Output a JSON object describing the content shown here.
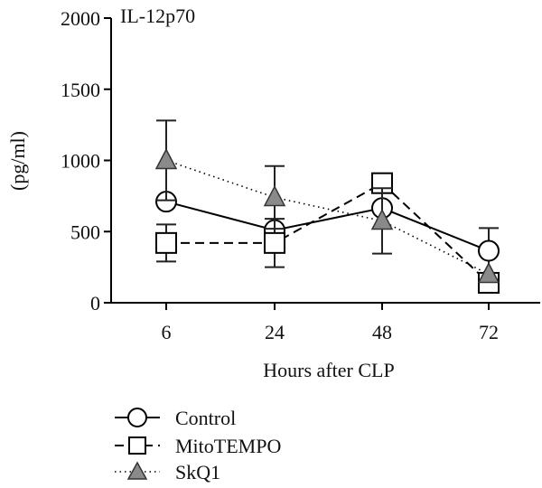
{
  "chart_data": {
    "type": "line",
    "title": "IL-12p70",
    "ylabel": "(pg/ml)",
    "xlabel": "Hours after CLP",
    "categories": [
      "6",
      "24",
      "48",
      "72"
    ],
    "y_ticks": [
      "0",
      "500",
      "1000",
      "1500",
      "2000"
    ],
    "ylim": [
      0,
      2000
    ],
    "series": [
      {
        "name": "Control",
        "marker": "circle",
        "line": "solid",
        "values": [
          710,
          510,
          665,
          365
        ],
        "error": [
          0,
          0,
          0,
          160
        ],
        "color": "#ffffff"
      },
      {
        "name": "MitoTEMPO",
        "marker": "square",
        "line": "dashed",
        "values": [
          420,
          420,
          840,
          140
        ],
        "error": [
          130,
          170,
          0,
          0
        ],
        "color": "#ffffff"
      },
      {
        "name": "SkQ1",
        "marker": "triangle",
        "line": "dotted",
        "values": [
          1000,
          740,
          575,
          200
        ],
        "error": [
          280,
          220,
          230,
          0
        ],
        "color": "#8a8a8a"
      }
    ],
    "grid": false,
    "legend_position": "bottom-left"
  }
}
